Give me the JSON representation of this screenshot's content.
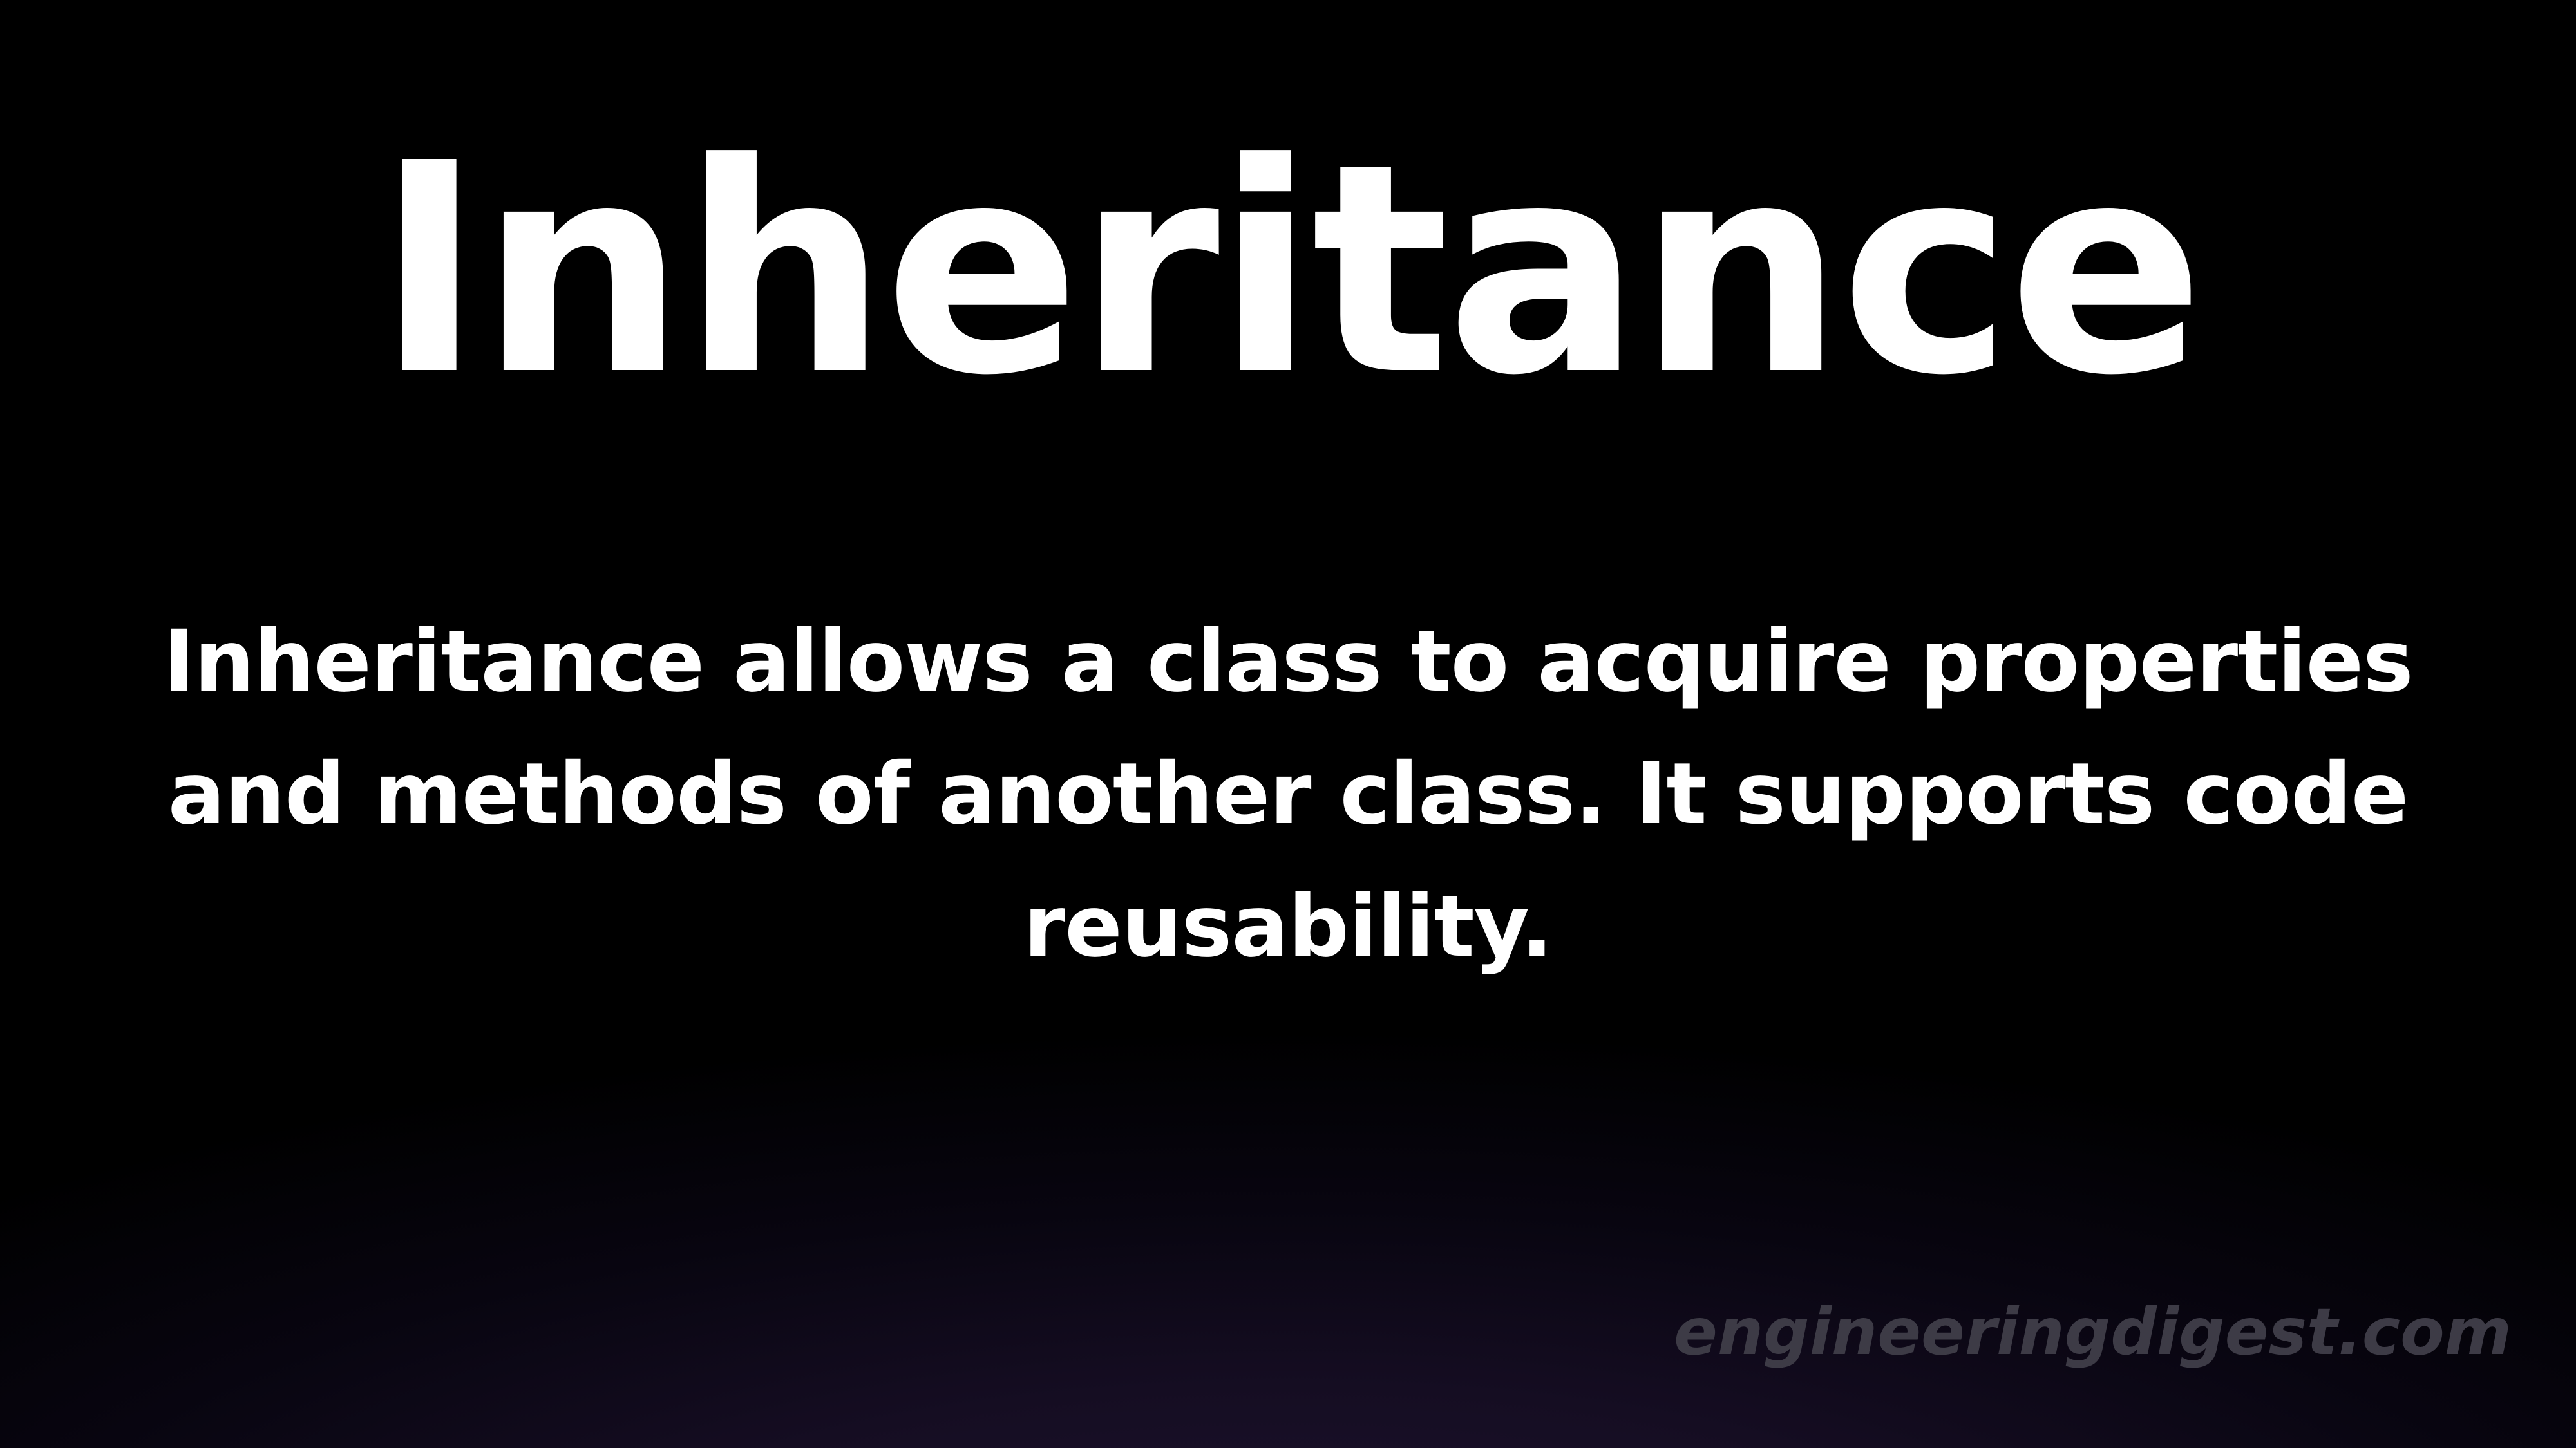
{
  "slide": {
    "title": "Inheritance",
    "description": "Inheritance allows a class to acquire properties and methods of another class. It supports code reusability.",
    "watermark": "engineeringdigest.com"
  },
  "colors": {
    "background": "#000000",
    "glow": "#1f1432",
    "text": "#ffffff",
    "watermark": "#3d3b46"
  }
}
